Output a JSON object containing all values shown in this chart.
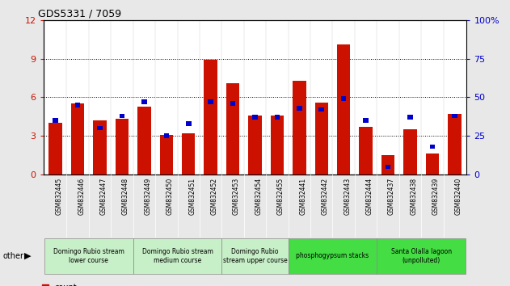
{
  "title": "GDS5331 / 7059",
  "samples": [
    "GSM832445",
    "GSM832446",
    "GSM832447",
    "GSM832448",
    "GSM832449",
    "GSM832450",
    "GSM832451",
    "GSM832452",
    "GSM832453",
    "GSM832454",
    "GSM832455",
    "GSM832441",
    "GSM832442",
    "GSM832443",
    "GSM832444",
    "GSM832437",
    "GSM832438",
    "GSM832439",
    "GSM832440"
  ],
  "count": [
    4.0,
    5.5,
    4.2,
    4.3,
    5.3,
    3.1,
    3.2,
    8.9,
    7.1,
    4.6,
    4.6,
    7.3,
    5.6,
    10.1,
    3.7,
    1.5,
    3.5,
    1.6,
    4.7
  ],
  "percentile": [
    35,
    45,
    30,
    38,
    47,
    25,
    33,
    47,
    46,
    37,
    37,
    43,
    42,
    49,
    35,
    5,
    37,
    18,
    38
  ],
  "groups": [
    {
      "label": "Domingo Rubio stream\nlower course",
      "start": 0,
      "end": 4,
      "color": "#c8f0c8"
    },
    {
      "label": "Domingo Rubio stream\nmedium course",
      "start": 4,
      "end": 8,
      "color": "#c8f0c8"
    },
    {
      "label": "Domingo Rubio\nstream upper course",
      "start": 8,
      "end": 11,
      "color": "#c8f0c8"
    },
    {
      "label": "phosphogypsum stacks",
      "start": 11,
      "end": 15,
      "color": "#44dd44"
    },
    {
      "label": "Santa Olalla lagoon\n(unpolluted)",
      "start": 15,
      "end": 19,
      "color": "#44dd44"
    }
  ],
  "left_ylim": [
    0,
    12
  ],
  "right_ylim": [
    0,
    100
  ],
  "left_yticks": [
    0,
    3,
    6,
    9,
    12
  ],
  "right_yticks": [
    0,
    25,
    50,
    75,
    100
  ],
  "bar_color": "#cc1100",
  "percentile_color": "#0000cc",
  "bg_color": "#e8e8e8",
  "plot_bg": "#ffffff",
  "grid_color": "#000000",
  "tick_bg": "#cccccc"
}
